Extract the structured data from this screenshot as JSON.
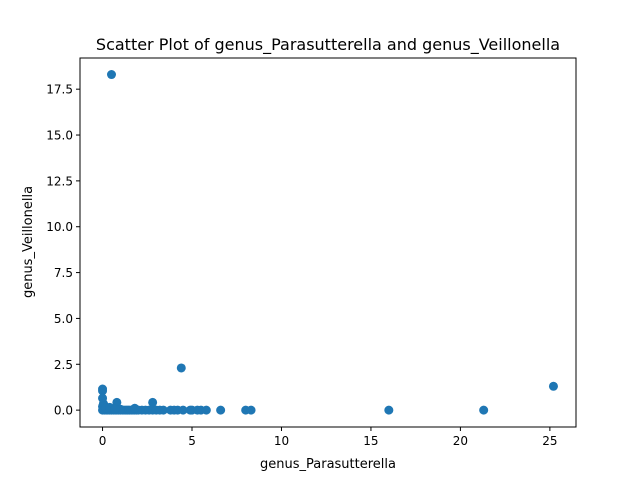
{
  "chart_data": {
    "type": "scatter",
    "title": "Scatter Plot of genus_Parasutterella and genus_Veillonella",
    "xlabel": "genus_Parasutterella",
    "ylabel": "genus_Veillonella",
    "xlim": [
      -1.26,
      26.46
    ],
    "ylim": [
      -0.92,
      19.2
    ],
    "x_ticks": [
      0,
      5,
      10,
      15,
      20,
      25
    ],
    "x_tick_labels": [
      "0",
      "5",
      "10",
      "15",
      "20",
      "25"
    ],
    "y_ticks": [
      0.0,
      2.5,
      5.0,
      7.5,
      10.0,
      12.5,
      15.0,
      17.5
    ],
    "y_tick_labels": [
      "0.0",
      "2.5",
      "5.0",
      "7.5",
      "10.0",
      "12.5",
      "15.0",
      "17.5"
    ],
    "grid": false,
    "legend": "none",
    "marker_color": "#1f77b4",
    "series": [
      {
        "x": [
          0.5,
          4.4,
          25.2,
          0.0,
          0.0,
          0.0,
          0.05,
          0.1,
          0.0,
          0.8,
          2.8,
          0.0,
          0.1,
          0.2,
          0.3,
          0.4,
          0.5,
          0.6,
          0.7,
          0.8,
          0.9,
          1.0,
          1.1,
          1.2,
          1.3,
          1.4,
          1.5,
          1.6,
          1.7,
          1.8,
          1.9,
          2.0,
          2.2,
          2.4,
          2.6,
          2.8,
          3.0,
          3.2,
          3.4,
          3.8,
          4.0,
          4.2,
          4.5,
          4.9,
          5.0,
          5.3,
          5.5,
          5.8,
          6.6,
          8.0,
          8.3,
          16.0,
          21.3,
          0.3,
          0.6,
          1.0,
          1.8,
          0.2,
          0.4,
          0.7
        ],
        "y": [
          18.3,
          2.3,
          1.3,
          1.15,
          1.05,
          0.65,
          0.35,
          0.25,
          0.2,
          0.42,
          0.42,
          0.0,
          0.0,
          0.0,
          0.0,
          0.0,
          0.0,
          0.0,
          0.0,
          0.0,
          0.0,
          0.0,
          0.0,
          0.0,
          0.0,
          0.0,
          0.0,
          0.0,
          0.0,
          0.0,
          0.0,
          0.0,
          0.0,
          0.0,
          0.0,
          0.0,
          0.0,
          0.0,
          0.0,
          0.0,
          0.0,
          0.0,
          0.0,
          0.0,
          0.0,
          0.0,
          0.0,
          0.0,
          0.0,
          0.0,
          0.0,
          0.0,
          0.0,
          0.1,
          0.08,
          0.05,
          0.1,
          0.12,
          0.15,
          0.05
        ]
      }
    ]
  }
}
